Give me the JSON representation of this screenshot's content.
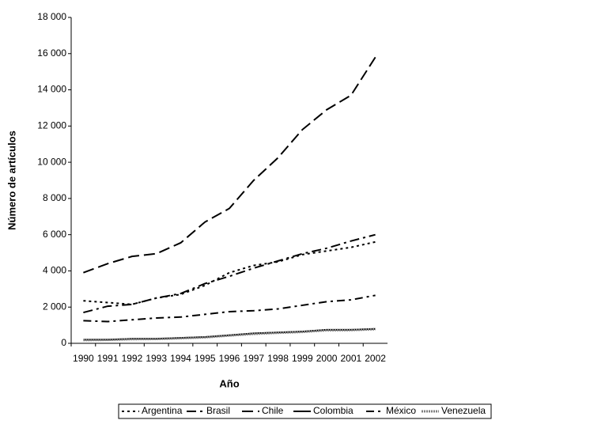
{
  "chart_data": {
    "type": "line",
    "x_label": "Año",
    "y_label": "Número de artículos",
    "categories": [
      "1990",
      "1991",
      "1992",
      "1993",
      "1994",
      "1995",
      "1996",
      "1997",
      "1998",
      "1999",
      "2000",
      "2001",
      "2002"
    ],
    "ylim": [
      0,
      18000
    ],
    "yticks": [
      0,
      {
        "value": 2000,
        "label": "2 000"
      },
      {
        "value": 4000,
        "label": "4 000"
      },
      {
        "value": 6000,
        "label": "6 000"
      },
      {
        "value": 8000,
        "label": "8 000"
      },
      {
        "value": 10000,
        "label": "10 000"
      },
      {
        "value": 12000,
        "label": "12 000"
      },
      {
        "value": 14000,
        "label": "14 000"
      },
      {
        "value": 16000,
        "label": "16 000"
      },
      {
        "value": 18000,
        "label": "18 000"
      }
    ],
    "legend": "bottom",
    "series": [
      {
        "name": "Argentina",
        "color": "#000000",
        "dash": "3,4",
        "values": [
          2350,
          2250,
          2150,
          2500,
          2700,
          3200,
          3900,
          4300,
          4500,
          4900,
          5100,
          5300,
          5600
        ]
      },
      {
        "name": "Brasil",
        "color": "#000000",
        "dash": "12,5,3,5",
        "values": [
          1700,
          2050,
          2150,
          2500,
          2750,
          3300,
          3700,
          4150,
          4550,
          4950,
          5250,
          5650,
          6000
        ]
      },
      {
        "name": "Chile",
        "color": "#000000",
        "dash": "14,6",
        "values": [
          3900,
          4400,
          4800,
          4950,
          5550,
          6700,
          7450,
          9000,
          10250,
          11800,
          12900,
          13700,
          15800
        ]
      },
      {
        "name": "Colombia",
        "color": "#000000",
        "dash": "none",
        "values": [
          200,
          200,
          250,
          250,
          300,
          350,
          450,
          550,
          600,
          650,
          750,
          750,
          800
        ]
      },
      {
        "name": "México",
        "color": "#000000",
        "dash": "10,5,3,5",
        "values": [
          1250,
          1200,
          1300,
          1400,
          1450,
          1600,
          1750,
          1800,
          1900,
          2100,
          2300,
          2400,
          2650
        ]
      },
      {
        "name": "Venezuela",
        "color": "#808080",
        "dash": "2,1",
        "values": [
          180,
          190,
          230,
          240,
          280,
          330,
          430,
          520,
          580,
          630,
          720,
          730,
          780
        ]
      }
    ]
  }
}
